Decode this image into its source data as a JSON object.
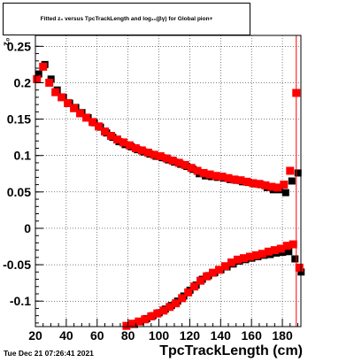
{
  "title": "Fitted  z₀  versus TpcTrackLength and log₁₀(βγ) for Global pion+",
  "timestamp": "Tue Dec 21 07:26:41 2021",
  "chart_data": {
    "type": "scatter",
    "title": "Fitted  z₀  versus TpcTrackLength and log₁₀(βγ) for Global pion+",
    "xlabel": "TpcTrackLength (cm)",
    "ylabel": "z₀",
    "xlim": [
      20,
      192
    ],
    "ylim": [
      -0.135,
      0.265
    ],
    "grid": true,
    "x_ticks": [
      "20",
      "40",
      "60",
      "80",
      "100",
      "120",
      "140",
      "160",
      "180"
    ],
    "y_ticks": [
      "-0.1",
      "-0.05",
      "0",
      "0.05",
      "0.1",
      "0.15",
      "0.2",
      "0.25"
    ],
    "series": [
      {
        "color": "#000000",
        "x": [
          21,
          25,
          29,
          33,
          37,
          41,
          45,
          49,
          53,
          57,
          61,
          65,
          69,
          73,
          77,
          81,
          85,
          89,
          93,
          97,
          101,
          105,
          109,
          113,
          117,
          121,
          125,
          129,
          133,
          137,
          141,
          145,
          149,
          153,
          157,
          161,
          165,
          169,
          173,
          177,
          181,
          185,
          189
        ],
        "y": [
          0.212,
          0.225,
          0.205,
          0.19,
          0.18,
          0.172,
          0.166,
          0.159,
          0.152,
          0.145,
          0.139,
          0.131,
          0.125,
          0.119,
          0.115,
          0.112,
          0.108,
          0.105,
          0.102,
          0.099,
          0.097,
          0.094,
          0.091,
          0.088,
          0.085,
          0.081,
          0.075,
          0.072,
          0.071,
          0.07,
          0.069,
          0.067,
          0.066,
          0.064,
          0.063,
          0.061,
          0.06,
          0.056,
          0.053,
          0.053,
          0.049,
          0.065,
          0.076
        ]
      },
      {
        "color": "#ff0000",
        "x": [
          21,
          25,
          29,
          33,
          37,
          41,
          45,
          49,
          53,
          57,
          61,
          65,
          69,
          73,
          77,
          81,
          85,
          89,
          93,
          97,
          101,
          105,
          109,
          113,
          117,
          121,
          125,
          129,
          133,
          137,
          141,
          145,
          149,
          153,
          157,
          161,
          165,
          169,
          173,
          177,
          181,
          185,
          189
        ],
        "y": [
          0.205,
          0.222,
          0.2,
          0.187,
          0.18,
          0.172,
          0.165,
          0.158,
          0.152,
          0.146,
          0.14,
          0.133,
          0.127,
          0.122,
          0.118,
          0.114,
          0.11,
          0.107,
          0.104,
          0.101,
          0.099,
          0.096,
          0.093,
          0.09,
          0.087,
          0.083,
          0.079,
          0.076,
          0.074,
          0.072,
          0.071,
          0.069,
          0.067,
          0.066,
          0.064,
          0.062,
          0.061,
          0.059,
          0.057,
          0.056,
          0.06,
          0.079,
          0.186
        ]
      },
      {
        "color": "#000000",
        "x": [
          79,
          83,
          87,
          91,
          95,
          99,
          103,
          107,
          111,
          115,
          119,
          123,
          127,
          131,
          135,
          139,
          143,
          147,
          151,
          155,
          159,
          163,
          167,
          171,
          175,
          179,
          183,
          187,
          191
        ],
        "y": [
          -0.136,
          -0.132,
          -0.128,
          -0.124,
          -0.12,
          -0.116,
          -0.111,
          -0.106,
          -0.1,
          -0.093,
          -0.085,
          -0.078,
          -0.07,
          -0.065,
          -0.061,
          -0.057,
          -0.053,
          -0.049,
          -0.045,
          -0.043,
          -0.041,
          -0.039,
          -0.037,
          -0.036,
          -0.034,
          -0.033,
          -0.032,
          -0.042,
          -0.06
        ]
      },
      {
        "color": "#ff0000",
        "x": [
          79,
          83,
          87,
          91,
          95,
          99,
          103,
          107,
          111,
          115,
          119,
          123,
          127,
          131,
          135,
          139,
          143,
          147,
          151,
          155,
          159,
          163,
          167,
          171,
          175,
          179,
          183,
          187,
          191
        ],
        "y": [
          -0.134,
          -0.131,
          -0.128,
          -0.125,
          -0.121,
          -0.117,
          -0.113,
          -0.108,
          -0.103,
          -0.096,
          -0.088,
          -0.08,
          -0.072,
          -0.066,
          -0.061,
          -0.057,
          -0.052,
          -0.047,
          -0.043,
          -0.041,
          -0.039,
          -0.037,
          -0.035,
          -0.032,
          -0.03,
          -0.028,
          -0.024,
          -0.022,
          -0.054
        ]
      }
    ]
  }
}
